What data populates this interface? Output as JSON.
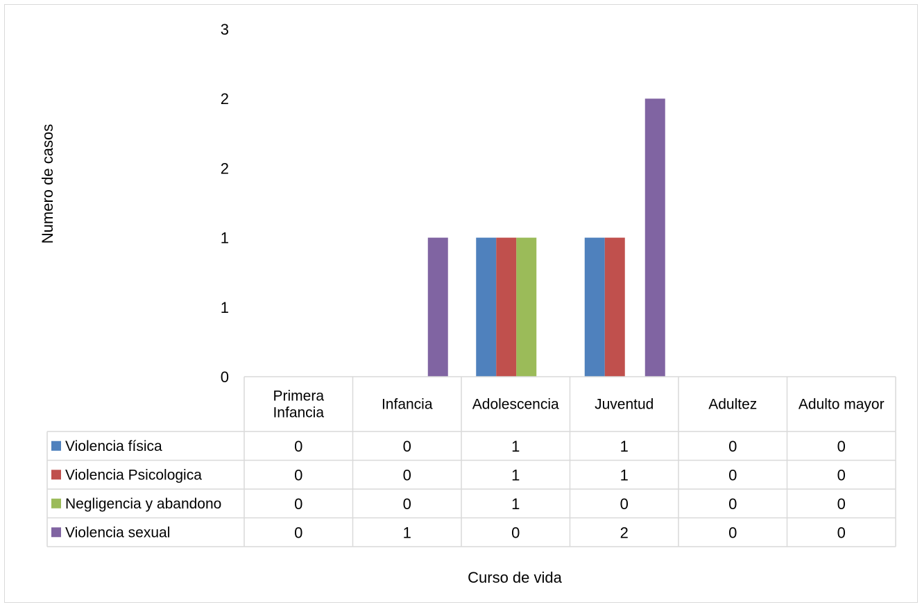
{
  "chart_data": {
    "type": "bar",
    "title": "",
    "xlabel": "Curso de vida",
    "ylabel": "Numero de casos",
    "ylim": [
      0,
      2.5
    ],
    "yticks": [
      0,
      0.5,
      1,
      1.5,
      2,
      2.5
    ],
    "ytick_labels": [
      "0",
      "1",
      "1",
      "2",
      "2",
      "3"
    ],
    "categories": [
      "Primera Infancia",
      "Infancia",
      "Adolescencia",
      "Juventud",
      "Adultez",
      "Adulto mayor"
    ],
    "series": [
      {
        "name": "Violencia física",
        "color": "#4F81BD",
        "values": [
          0,
          0,
          1,
          1,
          0,
          0
        ]
      },
      {
        "name": "Violencia Psicologica",
        "color": "#C0504D",
        "values": [
          0,
          0,
          1,
          1,
          0,
          0
        ]
      },
      {
        "name": "Negligencia y abandono",
        "color": "#9BBB59",
        "values": [
          0,
          0,
          1,
          0,
          0,
          0
        ]
      },
      {
        "name": "Violencia sexual",
        "color": "#8064A2",
        "values": [
          0,
          1,
          0,
          2,
          0,
          0
        ]
      }
    ],
    "legend": "data-table",
    "grid": false
  }
}
